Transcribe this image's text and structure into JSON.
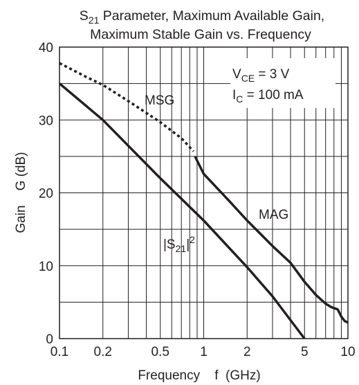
{
  "chart_data": {
    "type": "line",
    "title": {
      "line1_base": "S",
      "line1_sub": "21",
      "line1_rest": " Parameter, Maximum Available Gain,",
      "line2": "Maximum Stable Gain vs. Frequency"
    },
    "xlabel": "Frequency    f  (GHz)",
    "ylabel": "Gain    G (dB)",
    "x_scale": "log",
    "xlim": [
      0.1,
      10
    ],
    "ylim": [
      0,
      40
    ],
    "x_ticks": [
      0.1,
      0.2,
      0.5,
      1,
      2,
      5,
      10
    ],
    "x_tick_labels": [
      "0.1",
      "0.2",
      "0.5",
      "1",
      "2",
      "5",
      "10"
    ],
    "y_ticks": [
      0,
      10,
      20,
      30,
      40
    ],
    "y_tick_labels": [
      "0",
      "10",
      "20",
      "30",
      "40"
    ],
    "grid": true,
    "x_minor_grid": [
      0.3,
      0.4,
      0.6,
      0.7,
      0.8,
      0.9,
      3,
      4,
      6,
      7,
      8,
      9
    ],
    "y_minor_grid": [
      5,
      15,
      25,
      35
    ],
    "series": [
      {
        "name": "MSG",
        "style": "dotted",
        "x": [
          0.1,
          0.15,
          0.2,
          0.3,
          0.5,
          0.7,
          0.85
        ],
        "y": [
          37.8,
          36.0,
          34.8,
          32.6,
          29.7,
          27.5,
          25.7
        ]
      },
      {
        "name": "MAG",
        "style": "solid",
        "x": [
          0.87,
          1.0,
          1.5,
          2.0,
          3.0,
          4.0,
          5.0,
          6.0,
          7.0,
          7.7,
          8.5,
          9.0,
          9.5,
          10.0,
          10.5
        ],
        "y": [
          25.0,
          22.6,
          18.9,
          16.2,
          12.7,
          10.4,
          7.8,
          6.0,
          4.8,
          4.3,
          4.0,
          3.0,
          2.4,
          2.2,
          2.2
        ]
      },
      {
        "name": "|S21|2",
        "style": "solid",
        "x": [
          0.1,
          0.2,
          0.5,
          1.0,
          2.0,
          3.0,
          5.0
        ],
        "y": [
          35.0,
          30.0,
          22.0,
          16.2,
          9.8,
          5.8,
          0.0
        ]
      }
    ],
    "annotations": {
      "msg_label": "MSG",
      "mag_label": "MAG",
      "s21_open": "|S",
      "s21_sub": "21",
      "s21_close": "|",
      "s21_sup": "2",
      "vce_base": "V",
      "vce_sub": "CE",
      "vce_rest": " = 3 V",
      "ic_base": "I",
      "ic_sub": "C",
      "ic_rest": " = 100 mA"
    }
  }
}
